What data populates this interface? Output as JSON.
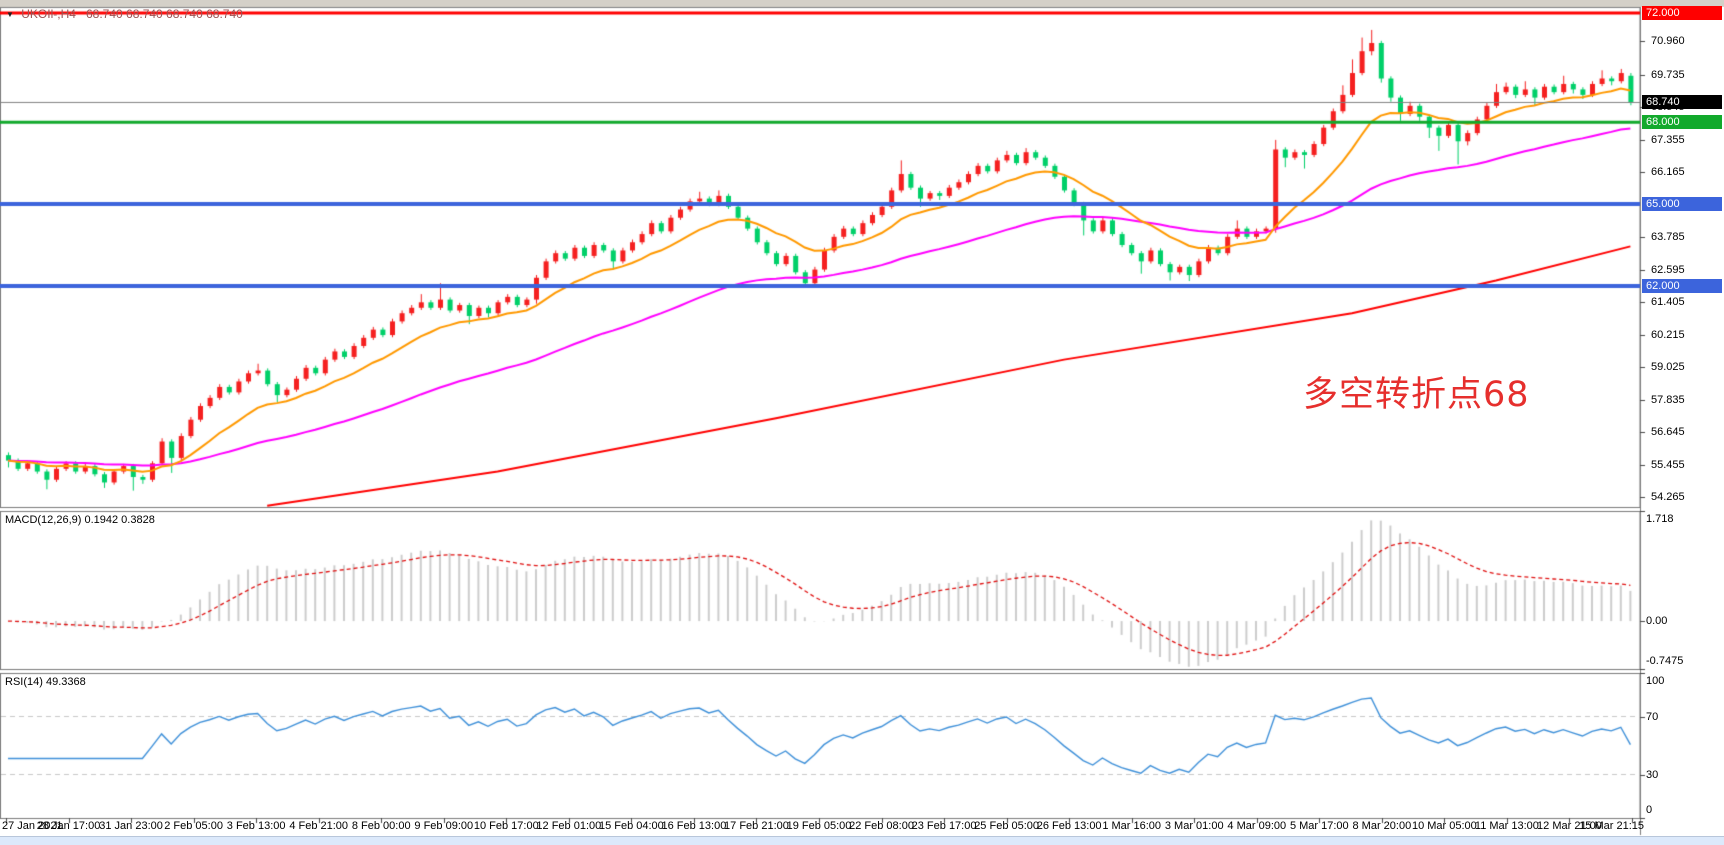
{
  "header": {
    "dropdown_icon": "▼",
    "symbol_period": "UKOIl-,H4",
    "ohlc_text": "68.740 68.740 68.740 68.740"
  },
  "annotation": {
    "text": "多空转折点68",
    "color": "#e62f2d"
  },
  "panels": {
    "macd": {
      "label": "MACD(12,26,9) 0.1942 0.3828",
      "ticks": [
        {
          "label": "1.718",
          "value": 1.718
        },
        {
          "label": "0.00",
          "value": 0.0
        },
        {
          "label": "-0.7475",
          "value": -0.7475
        }
      ]
    },
    "rsi": {
      "label": "RSI(14) 49.3368",
      "ticks": [
        {
          "label": "100",
          "value": 100
        },
        {
          "label": "70",
          "value": 70
        },
        {
          "label": "30",
          "value": 30
        },
        {
          "label": "0",
          "value": 0
        }
      ]
    }
  },
  "price_axis": {
    "plain_ticks": [
      {
        "label": "70.960",
        "value": 70.96
      },
      {
        "label": "69.735",
        "value": 69.735
      },
      {
        "label": "68.545",
        "value": 68.545
      },
      {
        "label": "67.355",
        "value": 67.355
      },
      {
        "label": "66.165",
        "value": 66.165
      },
      {
        "label": "63.785",
        "value": 63.785
      },
      {
        "label": "62.595",
        "value": 62.595
      },
      {
        "label": "61.405",
        "value": 61.405
      },
      {
        "label": "60.215",
        "value": 60.215
      },
      {
        "label": "59.025",
        "value": 59.025
      },
      {
        "label": "57.835",
        "value": 57.835
      },
      {
        "label": "56.645",
        "value": 56.645
      },
      {
        "label": "55.455",
        "value": 55.455
      },
      {
        "label": "54.265",
        "value": 54.265
      }
    ],
    "badges": [
      {
        "label": "72.000",
        "value": 72.0,
        "bg": "#ff0000"
      },
      {
        "label": "68.000",
        "value": 68.0,
        "bg": "#12a92c"
      },
      {
        "label": "65.000",
        "value": 65.0,
        "bg": "#3c64dc"
      },
      {
        "label": "62.000",
        "value": 62.0,
        "bg": "#3c64dc"
      },
      {
        "label": "68.740",
        "value": 68.74,
        "bg": "#000000"
      }
    ]
  },
  "chart_data": {
    "type": "candlestick",
    "symbol": "UKOIl-",
    "timeframe": "H4",
    "current_price": 68.74,
    "price_top": 72.0,
    "price_bottom": 54.265,
    "hlines": [
      {
        "value": 72.0,
        "color": "#ff0000",
        "width": 3
      },
      {
        "value": 68.0,
        "color": "#12a92c",
        "width": 3
      },
      {
        "value": 65.0,
        "color": "#3c64dc",
        "width": 4
      },
      {
        "value": 62.0,
        "color": "#3c64dc",
        "width": 4
      }
    ],
    "moving_averages": {
      "fast": {
        "period": 13,
        "color": "#ff9900"
      },
      "mid": {
        "period": 50,
        "color": "#ff00ff"
      },
      "slow_polyline": {
        "color": "#ff0000",
        "points": [
          [
            27,
            53.95
          ],
          [
            51,
            55.2
          ],
          [
            80,
            57.15
          ],
          [
            110,
            59.3
          ],
          [
            140,
            61.0
          ],
          [
            155,
            62.2
          ],
          [
            169,
            63.45
          ]
        ]
      }
    },
    "macd": {
      "fast": 12,
      "slow": 26,
      "signal": 9,
      "main_value": 0.1942,
      "signal_value": 0.3828,
      "range": [
        -0.7475,
        1.718
      ]
    },
    "rsi": {
      "period": 14,
      "value": 49.3368,
      "levels": [
        70,
        30
      ],
      "range": [
        0,
        100
      ]
    },
    "time_labels": [
      "27 Jan 2021",
      "28 Jan 17:00",
      "31 Jan 23:00",
      "2 Feb 05:00",
      "3 Feb 13:00",
      "4 Feb 21:00",
      "8 Feb 00:00",
      "9 Feb 09:00",
      "10 Feb 17:00",
      "12 Feb 01:00",
      "15 Feb 04:00",
      "16 Feb 13:00",
      "17 Feb 21:00",
      "19 Feb 05:00",
      "22 Feb 08:00",
      "23 Feb 17:00",
      "25 Feb 05:00",
      "26 Feb 13:00",
      "1 Mar 16:00",
      "3 Mar 01:00",
      "4 Mar 09:00",
      "5 Mar 17:00",
      "8 Mar 20:00",
      "10 Mar 05:00",
      "11 Mar 13:00",
      "12 Mar 21:00",
      "15 Mar 21:15"
    ],
    "ohlc": [
      [
        55.8,
        55.9,
        55.35,
        55.6
      ],
      [
        55.6,
        55.68,
        55.22,
        55.3
      ],
      [
        55.3,
        55.58,
        55.22,
        55.5
      ],
      [
        55.5,
        55.58,
        55.12,
        55.2
      ],
      [
        55.2,
        55.28,
        54.55,
        54.9
      ],
      [
        54.9,
        55.38,
        54.82,
        55.3
      ],
      [
        55.3,
        55.58,
        55.22,
        55.5
      ],
      [
        55.5,
        55.58,
        55.12,
        55.2
      ],
      [
        55.2,
        55.48,
        55.12,
        55.4
      ],
      [
        55.4,
        55.48,
        55.02,
        55.1
      ],
      [
        55.1,
        55.18,
        54.6,
        54.8
      ],
      [
        54.8,
        55.28,
        54.72,
        55.2
      ],
      [
        55.2,
        55.48,
        55.12,
        55.4
      ],
      [
        55.4,
        55.48,
        54.5,
        55.0
      ],
      [
        55.0,
        55.08,
        54.75,
        54.9
      ],
      [
        54.9,
        55.58,
        54.82,
        55.5
      ],
      [
        55.5,
        56.42,
        55.42,
        56.3
      ],
      [
        56.3,
        56.38,
        55.15,
        55.7
      ],
      [
        55.7,
        56.6,
        55.62,
        56.5
      ],
      [
        56.5,
        57.2,
        56.42,
        57.1
      ],
      [
        57.1,
        57.7,
        57.02,
        57.6
      ],
      [
        57.6,
        58.0,
        57.52,
        57.9
      ],
      [
        57.9,
        58.4,
        57.82,
        58.3
      ],
      [
        58.3,
        58.38,
        58.02,
        58.1
      ],
      [
        58.1,
        58.6,
        58.02,
        58.5
      ],
      [
        58.5,
        58.9,
        58.42,
        58.8
      ],
      [
        58.8,
        59.15,
        58.72,
        58.9
      ],
      [
        58.9,
        58.98,
        58.32,
        58.4
      ],
      [
        58.4,
        58.48,
        57.75,
        58.0
      ],
      [
        58.0,
        58.28,
        57.92,
        58.2
      ],
      [
        58.2,
        58.7,
        58.12,
        58.6
      ],
      [
        58.6,
        59.1,
        58.52,
        59.0
      ],
      [
        59.0,
        59.08,
        58.72,
        58.8
      ],
      [
        58.8,
        59.4,
        58.72,
        59.3
      ],
      [
        59.3,
        59.7,
        59.22,
        59.6
      ],
      [
        59.6,
        59.68,
        59.32,
        59.4
      ],
      [
        59.4,
        59.9,
        59.32,
        59.8
      ],
      [
        59.8,
        60.2,
        59.72,
        60.1
      ],
      [
        60.1,
        60.5,
        60.02,
        60.4
      ],
      [
        60.4,
        60.48,
        60.12,
        60.2
      ],
      [
        60.2,
        60.8,
        60.12,
        60.7
      ],
      [
        60.7,
        61.1,
        60.62,
        61.0
      ],
      [
        61.0,
        61.3,
        60.92,
        61.2
      ],
      [
        61.2,
        61.7,
        61.12,
        61.4
      ],
      [
        61.4,
        61.48,
        61.12,
        61.2
      ],
      [
        61.2,
        62.1,
        61.12,
        61.5
      ],
      [
        61.5,
        61.58,
        61.02,
        61.1
      ],
      [
        61.1,
        61.38,
        61.02,
        61.3
      ],
      [
        61.3,
        61.38,
        60.6,
        60.9
      ],
      [
        60.9,
        61.28,
        60.82,
        61.2
      ],
      [
        61.2,
        61.28,
        60.85,
        61.0
      ],
      [
        61.0,
        61.48,
        60.92,
        61.4
      ],
      [
        61.4,
        61.7,
        61.32,
        61.6
      ],
      [
        61.6,
        61.68,
        61.22,
        61.3
      ],
      [
        61.3,
        61.58,
        61.22,
        61.5
      ],
      [
        61.5,
        62.4,
        61.35,
        62.3
      ],
      [
        62.3,
        63.0,
        62.22,
        62.9
      ],
      [
        62.9,
        63.3,
        62.82,
        63.2
      ],
      [
        63.2,
        63.28,
        62.92,
        63.0
      ],
      [
        63.0,
        63.5,
        62.92,
        63.4
      ],
      [
        63.4,
        63.48,
        63.02,
        63.1
      ],
      [
        63.1,
        63.6,
        63.02,
        63.5
      ],
      [
        63.5,
        63.58,
        63.22,
        63.3
      ],
      [
        63.3,
        63.38,
        62.6,
        62.9
      ],
      [
        62.9,
        63.4,
        62.82,
        63.3
      ],
      [
        63.3,
        63.7,
        63.22,
        63.6
      ],
      [
        63.6,
        64.0,
        63.52,
        63.9
      ],
      [
        63.9,
        64.4,
        63.82,
        64.3
      ],
      [
        64.3,
        64.38,
        63.92,
        64.0
      ],
      [
        64.0,
        64.6,
        63.92,
        64.5
      ],
      [
        64.5,
        64.9,
        64.42,
        64.8
      ],
      [
        64.8,
        65.2,
        64.72,
        65.1
      ],
      [
        65.1,
        65.45,
        65.02,
        65.2
      ],
      [
        65.2,
        65.28,
        64.92,
        65.0
      ],
      [
        65.0,
        65.5,
        64.92,
        65.3
      ],
      [
        65.3,
        65.38,
        64.82,
        64.9
      ],
      [
        64.9,
        64.98,
        64.42,
        64.5
      ],
      [
        64.5,
        64.58,
        64.02,
        64.1
      ],
      [
        64.1,
        64.18,
        63.52,
        63.6
      ],
      [
        63.6,
        63.68,
        63.12,
        63.2
      ],
      [
        63.2,
        63.28,
        62.72,
        62.8
      ],
      [
        62.8,
        63.2,
        62.72,
        63.1
      ],
      [
        63.1,
        63.18,
        62.42,
        62.5
      ],
      [
        62.5,
        62.58,
        61.96,
        62.1
      ],
      [
        62.1,
        62.7,
        62.02,
        62.6
      ],
      [
        62.6,
        63.4,
        62.52,
        63.3
      ],
      [
        63.3,
        63.9,
        63.22,
        63.8
      ],
      [
        63.8,
        64.2,
        63.72,
        64.1
      ],
      [
        64.1,
        64.18,
        63.82,
        63.9
      ],
      [
        63.9,
        64.4,
        63.82,
        64.3
      ],
      [
        64.3,
        64.7,
        64.22,
        64.6
      ],
      [
        64.6,
        65.0,
        64.52,
        64.9
      ],
      [
        64.9,
        65.6,
        64.82,
        65.5
      ],
      [
        65.5,
        66.6,
        65.42,
        66.1
      ],
      [
        66.1,
        66.18,
        65.52,
        65.6
      ],
      [
        65.6,
        65.68,
        64.9,
        65.2
      ],
      [
        65.2,
        65.48,
        65.12,
        65.4
      ],
      [
        65.4,
        65.48,
        65.15,
        65.3
      ],
      [
        65.3,
        65.7,
        65.22,
        65.6
      ],
      [
        65.6,
        65.9,
        65.52,
        65.8
      ],
      [
        65.8,
        66.2,
        65.72,
        66.1
      ],
      [
        66.1,
        66.5,
        66.02,
        66.4
      ],
      [
        66.4,
        66.48,
        66.12,
        66.2
      ],
      [
        66.2,
        66.7,
        66.12,
        66.6
      ],
      [
        66.6,
        66.95,
        66.52,
        66.8
      ],
      [
        66.8,
        66.88,
        66.42,
        66.5
      ],
      [
        66.5,
        67.05,
        66.42,
        66.9
      ],
      [
        66.9,
        66.98,
        66.62,
        66.7
      ],
      [
        66.7,
        66.78,
        66.32,
        66.4
      ],
      [
        66.4,
        66.48,
        65.92,
        66.0
      ],
      [
        66.0,
        66.08,
        65.42,
        65.5
      ],
      [
        65.5,
        65.58,
        64.92,
        65.0
      ],
      [
        65.0,
        65.08,
        63.85,
        64.4
      ],
      [
        64.4,
        64.48,
        63.92,
        64.0
      ],
      [
        64.0,
        64.5,
        63.92,
        64.4
      ],
      [
        64.4,
        64.48,
        63.82,
        63.9
      ],
      [
        63.9,
        63.98,
        63.42,
        63.5
      ],
      [
        63.5,
        63.58,
        63.12,
        63.2
      ],
      [
        63.2,
        63.28,
        62.45,
        62.9
      ],
      [
        62.9,
        63.4,
        62.82,
        63.3
      ],
      [
        63.3,
        63.38,
        62.72,
        62.8
      ],
      [
        62.8,
        62.88,
        62.2,
        62.5
      ],
      [
        62.5,
        62.78,
        62.42,
        62.7
      ],
      [
        62.7,
        62.78,
        62.18,
        62.4
      ],
      [
        62.4,
        63.0,
        62.32,
        62.9
      ],
      [
        62.9,
        63.5,
        62.82,
        63.4
      ],
      [
        63.4,
        63.48,
        63.12,
        63.2
      ],
      [
        63.2,
        63.9,
        63.12,
        63.8
      ],
      [
        63.8,
        64.4,
        63.72,
        64.1
      ],
      [
        64.1,
        64.18,
        63.72,
        63.8
      ],
      [
        63.8,
        64.1,
        63.72,
        64.0
      ],
      [
        64.0,
        64.18,
        63.92,
        64.1
      ],
      [
        64.1,
        67.35,
        63.95,
        67.0
      ],
      [
        67.0,
        67.08,
        66.35,
        66.7
      ],
      [
        66.7,
        67.0,
        66.62,
        66.9
      ],
      [
        66.9,
        66.98,
        66.3,
        66.8
      ],
      [
        66.8,
        67.3,
        66.72,
        67.2
      ],
      [
        67.2,
        67.9,
        67.12,
        67.8
      ],
      [
        67.8,
        68.5,
        67.72,
        68.4
      ],
      [
        68.4,
        69.35,
        68.32,
        69.0
      ],
      [
        69.0,
        70.3,
        68.92,
        69.8
      ],
      [
        69.8,
        71.1,
        69.72,
        70.6
      ],
      [
        70.6,
        71.38,
        70.45,
        70.9
      ],
      [
        70.9,
        70.98,
        69.45,
        69.6
      ],
      [
        69.6,
        69.68,
        68.75,
        68.9
      ],
      [
        68.9,
        68.98,
        68.05,
        68.3
      ],
      [
        68.3,
        68.75,
        68.22,
        68.6
      ],
      [
        68.6,
        68.68,
        68.05,
        68.2
      ],
      [
        68.2,
        68.28,
        67.42,
        67.8
      ],
      [
        67.8,
        67.88,
        66.95,
        67.5
      ],
      [
        67.5,
        68.0,
        67.42,
        67.9
      ],
      [
        67.9,
        67.98,
        66.45,
        67.3
      ],
      [
        67.3,
        67.7,
        67.15,
        67.6
      ],
      [
        67.6,
        68.2,
        67.52,
        68.1
      ],
      [
        68.1,
        68.7,
        68.02,
        68.6
      ],
      [
        68.6,
        69.4,
        68.52,
        69.1
      ],
      [
        69.1,
        69.45,
        69.02,
        69.3
      ],
      [
        69.3,
        69.38,
        68.88,
        69.0
      ],
      [
        69.0,
        69.5,
        68.92,
        69.2
      ],
      [
        69.2,
        69.28,
        68.6,
        68.9
      ],
      [
        68.9,
        69.4,
        68.82,
        69.3
      ],
      [
        69.3,
        69.38,
        69.02,
        69.1
      ],
      [
        69.1,
        69.7,
        69.02,
        69.4
      ],
      [
        69.4,
        69.48,
        69.05,
        69.2
      ],
      [
        69.2,
        69.28,
        68.85,
        69.0
      ],
      [
        69.0,
        69.5,
        68.92,
        69.4
      ],
      [
        69.4,
        69.9,
        69.32,
        69.6
      ],
      [
        69.6,
        69.68,
        69.35,
        69.5
      ],
      [
        69.5,
        69.95,
        69.42,
        69.8
      ],
      [
        69.7,
        69.8,
        68.62,
        68.74
      ]
    ]
  },
  "colors": {
    "candle_up": "#f52020",
    "candle_down": "#00d069",
    "price_line": "#808080",
    "macd_hist": "#cdcdcd",
    "macd_signal": "#e01010",
    "rsi_line": "#3e90d9",
    "level_dash": "#c8c8c8",
    "panel_border": "#7a7a7a",
    "tick_mark": "#444444"
  }
}
